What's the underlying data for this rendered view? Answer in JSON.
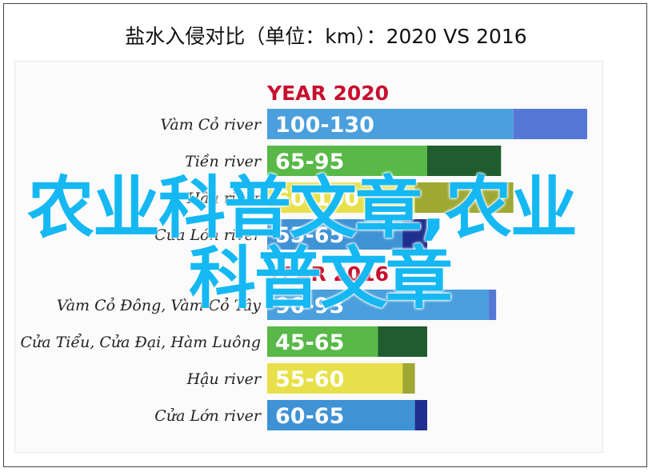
{
  "page": {
    "title": "盐水入侵对比（单位：km）：2020 VS 2016"
  },
  "watermark": {
    "line1": "农业科普文章,农业",
    "line2": "科普文章"
  },
  "chart_data": [
    {
      "type": "bar",
      "orientation": "horizontal",
      "title": "YEAR 2020",
      "categories": [
        "Vàm Cỏ river",
        "Tiền river",
        "Hậu river",
        "Cửa Lớn river"
      ],
      "series": [
        {
          "name": "",
          "ranges": [
            [
              100,
              130
            ],
            [
              65,
              95
            ],
            [
              60,
              100
            ],
            [
              55,
              65
            ]
          ]
        }
      ],
      "value_labels": [
        "100-130",
        "65-95",
        "60-100",
        "55-65"
      ],
      "colors": {
        "light": [
          "#4a9fdc",
          "#58b948",
          "#e8e04a",
          "#3f92d4"
        ],
        "dark": [
          "#5578d4",
          "#1f5c2e",
          "#a0a834",
          "#1e2f8f"
        ]
      }
    },
    {
      "type": "bar",
      "orientation": "horizontal",
      "title": "YEAR 2016",
      "categories": [
        "Vàm Cỏ Đông, Vàm Cỏ Tây",
        "Cửa Tiểu, Cửa Đại, Hàm Luông",
        "Hậu river",
        "Cửa Lớn river"
      ],
      "series": [
        {
          "name": "",
          "ranges": [
            [
              90,
              93
            ],
            [
              45,
              65
            ],
            [
              55,
              60
            ],
            [
              60,
              65
            ]
          ]
        }
      ],
      "value_labels": [
        "90-93",
        "45-65",
        "55-60",
        "60-65"
      ],
      "colors": {
        "light": [
          "#4a9fdc",
          "#58b948",
          "#e8e04a",
          "#3f92d4"
        ],
        "dark": [
          "#5578d4",
          "#1f5c2e",
          "#a0a834",
          "#1e2f8f"
        ]
      }
    }
  ],
  "colors": {
    "year_title": "#c8102e",
    "watermark": "#15b8f2"
  }
}
